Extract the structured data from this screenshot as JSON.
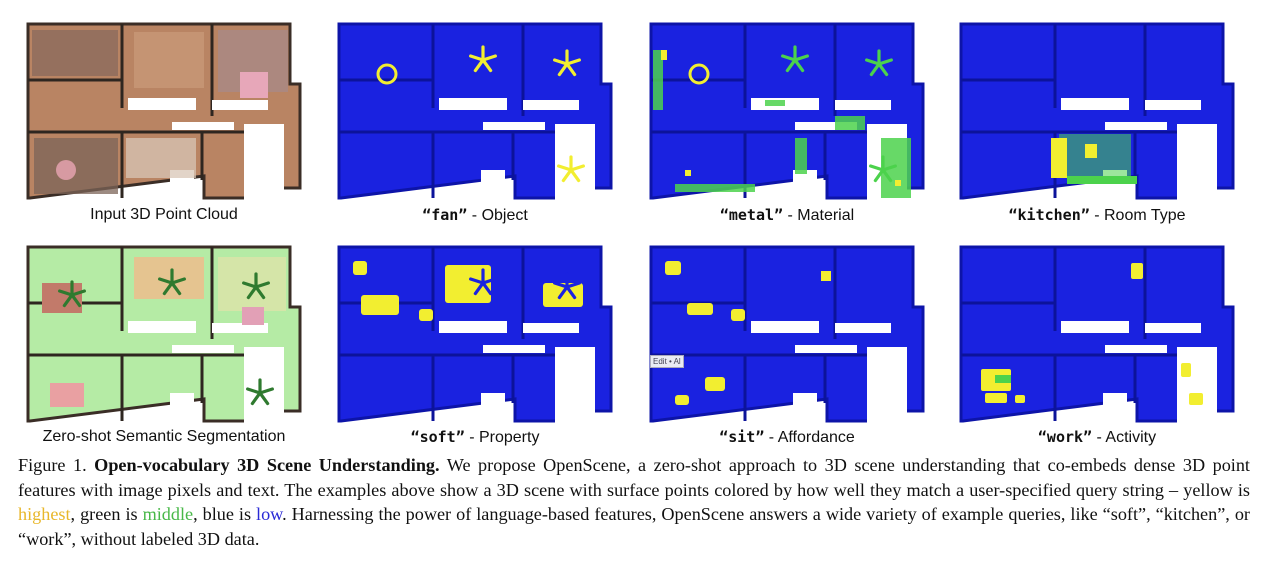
{
  "panels": [
    {
      "id": "input",
      "style": "photo",
      "highlights": []
    },
    {
      "id": "fan",
      "style": "heat",
      "highlights": [
        "fan"
      ]
    },
    {
      "id": "metal",
      "style": "heat",
      "highlights": [
        "metal"
      ]
    },
    {
      "id": "kitchen",
      "style": "heat",
      "highlights": [
        "kitchen"
      ]
    },
    {
      "id": "seg",
      "style": "seg",
      "highlights": []
    },
    {
      "id": "soft",
      "style": "heat",
      "highlights": [
        "soft"
      ]
    },
    {
      "id": "sit",
      "style": "heat",
      "highlights": [
        "sit"
      ]
    },
    {
      "id": "work",
      "style": "heat",
      "highlights": [
        "work"
      ]
    }
  ],
  "captions": {
    "input": "Input 3D Point Cloud",
    "fan_q": "“fan”",
    "fan_t": " - Object",
    "metal_q": "“metal”",
    "metal_t": " - Material",
    "kitchen_q": "“kitchen”",
    "kitchen_t": " - Room Type",
    "seg": "Zero-shot Semantic Segmentation",
    "soft_q": "“soft”",
    "soft_t": " - Property",
    "sit_q": "“sit”",
    "sit_t": " - Affordance",
    "work_q": "“work”",
    "work_t": " - Activity"
  },
  "tooltip": "Edit • Al",
  "figure": {
    "label": "Figure 1.",
    "title": "Open-vocabulary 3D Scene Understanding.",
    "text1": " We propose OpenScene, a zero-shot approach to 3D scene understanding that co-embeds dense 3D point features with image pixels and text. The examples above show a 3D scene with surface points colored by how well they match a user-specified query string – yellow is ",
    "highest": "highest",
    "text2": ", green is ",
    "middle": "middle",
    "text3": ", blue is ",
    "low": "low",
    "text4": ". Harnessing the power of language-based features, OpenScene answers a wide variety of example queries, like “soft”, “kitchen”, or “work”, without labeled 3D data."
  },
  "colors": {
    "heat_low": "#1a22e0",
    "heat_mid": "#4cd24c",
    "heat_high": "#f2ee30",
    "photo_floor": "#b98463",
    "seg_floor": "#b5eba5"
  }
}
